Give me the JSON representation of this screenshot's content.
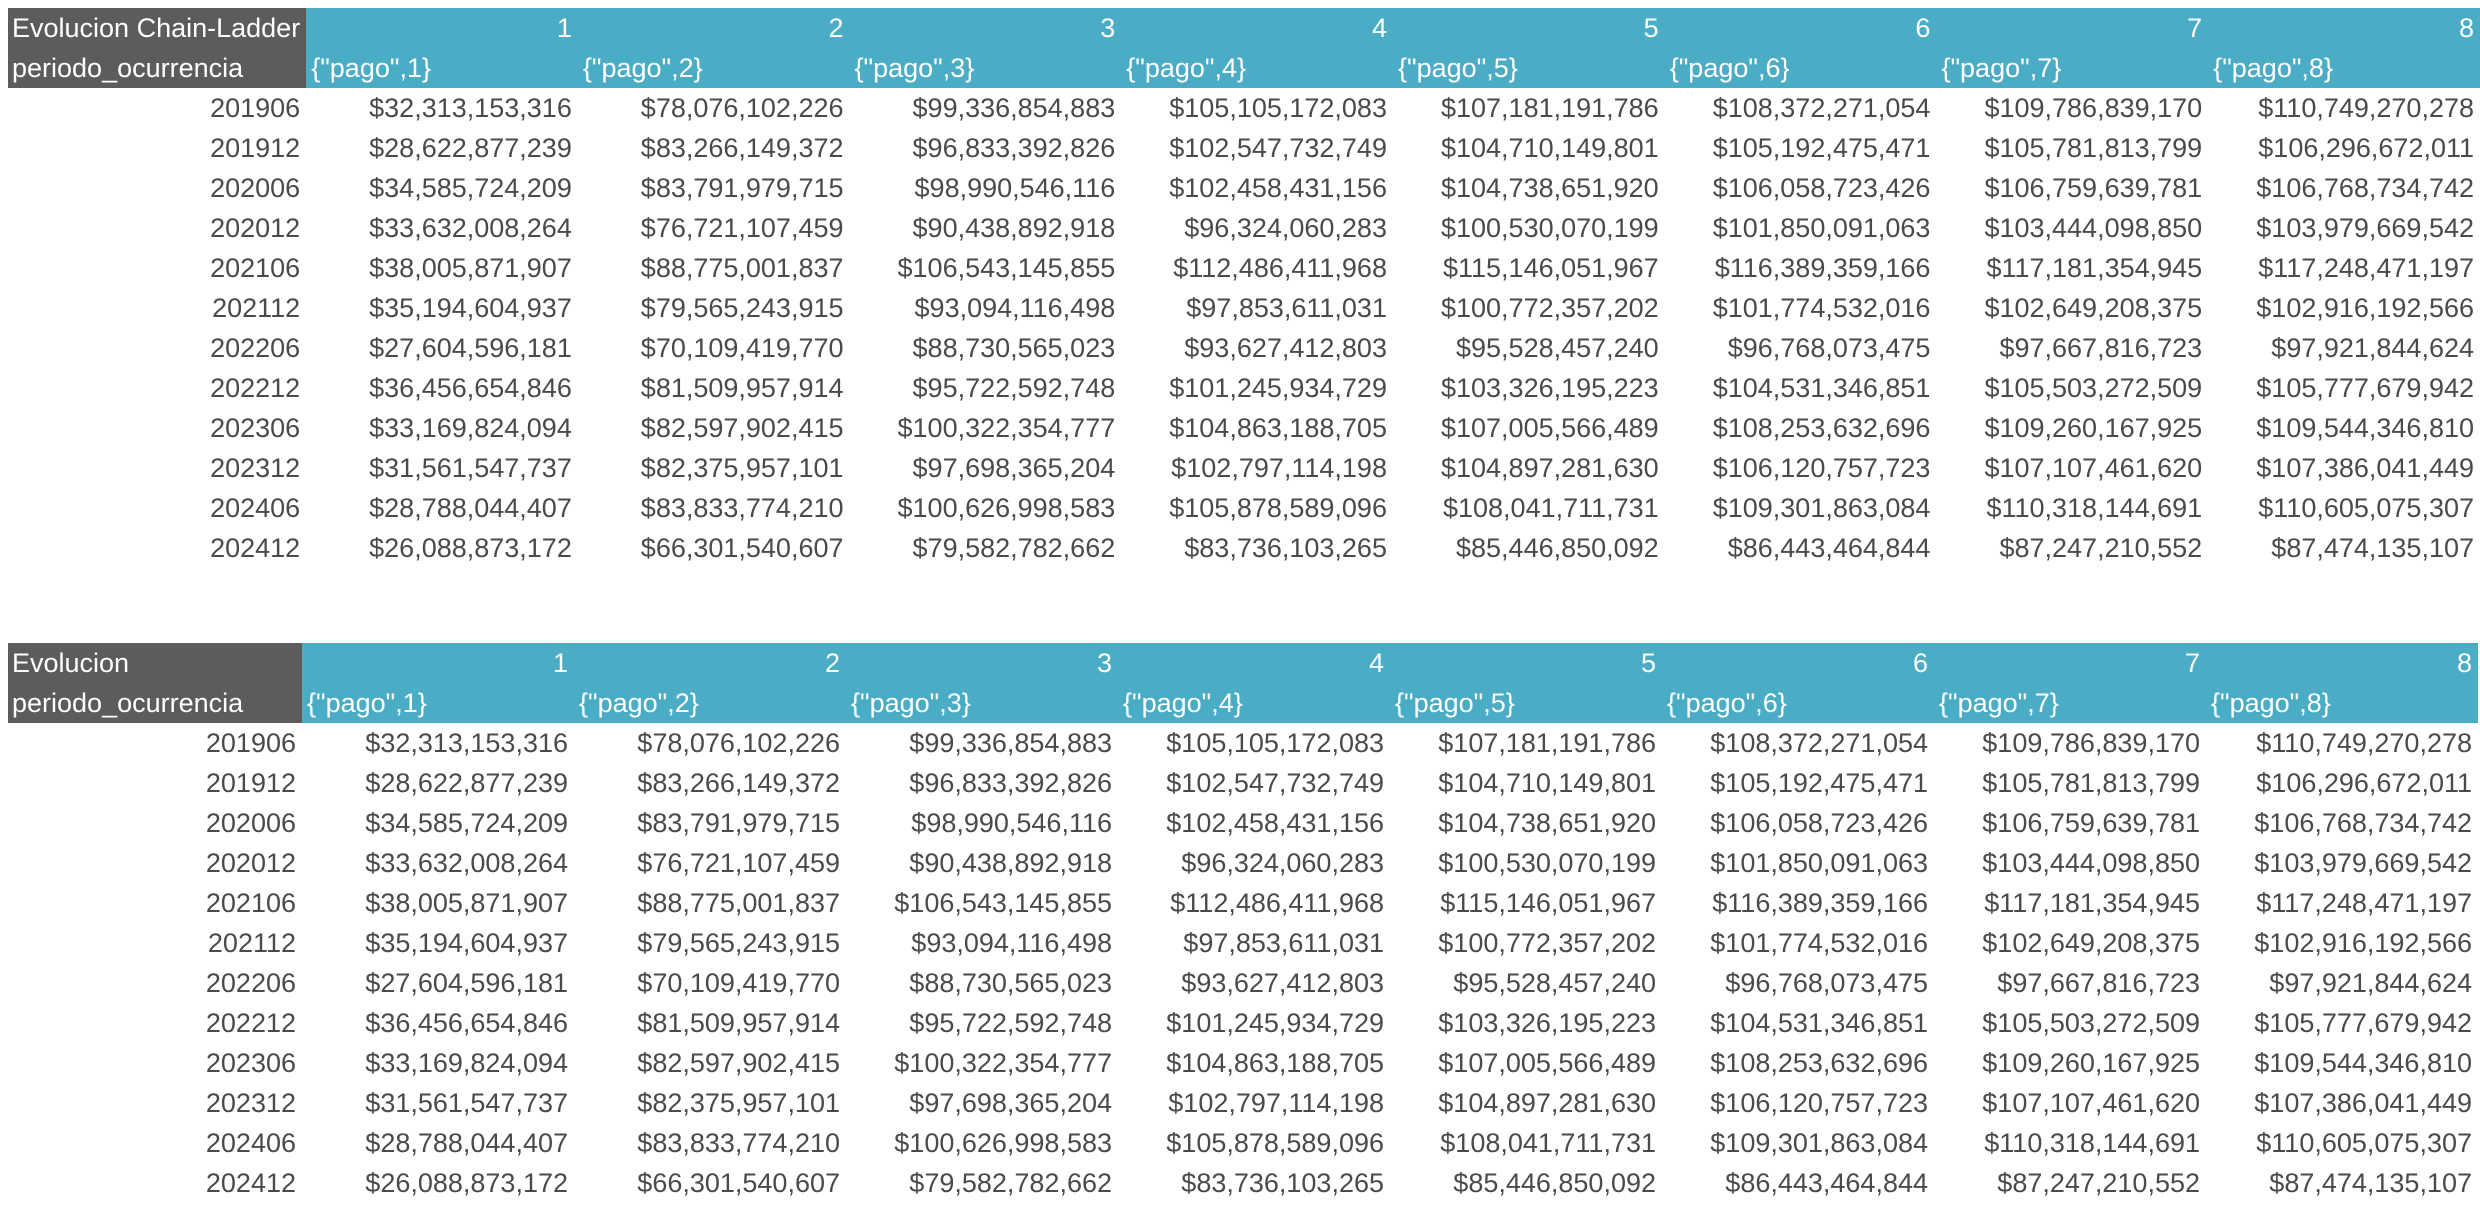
{
  "tables": [
    {
      "corner_title": "Evolucion Chain-Ladder",
      "row_header": "periodo_ocurrencia",
      "column_numbers": [
        "1",
        "2",
        "3",
        "4",
        "5",
        "6",
        "7",
        "8"
      ],
      "column_keys": [
        "{\"pago\",1}",
        "{\"pago\",2}",
        "{\"pago\",3}",
        "{\"pago\",4}",
        "{\"pago\",5}",
        "{\"pago\",6}",
        "{\"pago\",7}",
        "{\"pago\",8}"
      ],
      "rows": [
        {
          "period": "201906",
          "values": [
            "$32,313,153,316",
            "$78,076,102,226",
            "$99,336,854,883",
            "$105,105,172,083",
            "$107,181,191,786",
            "$108,372,271,054",
            "$109,786,839,170",
            "$110,749,270,278"
          ]
        },
        {
          "period": "201912",
          "values": [
            "$28,622,877,239",
            "$83,266,149,372",
            "$96,833,392,826",
            "$102,547,732,749",
            "$104,710,149,801",
            "$105,192,475,471",
            "$105,781,813,799",
            "$106,296,672,011"
          ]
        },
        {
          "period": "202006",
          "values": [
            "$34,585,724,209",
            "$83,791,979,715",
            "$98,990,546,116",
            "$102,458,431,156",
            "$104,738,651,920",
            "$106,058,723,426",
            "$106,759,639,781",
            "$106,768,734,742"
          ]
        },
        {
          "period": "202012",
          "values": [
            "$33,632,008,264",
            "$76,721,107,459",
            "$90,438,892,918",
            "$96,324,060,283",
            "$100,530,070,199",
            "$101,850,091,063",
            "$103,444,098,850",
            "$103,979,669,542"
          ]
        },
        {
          "period": "202106",
          "values": [
            "$38,005,871,907",
            "$88,775,001,837",
            "$106,543,145,855",
            "$112,486,411,968",
            "$115,146,051,967",
            "$116,389,359,166",
            "$117,181,354,945",
            "$117,248,471,197"
          ]
        },
        {
          "period": "202112",
          "values": [
            "$35,194,604,937",
            "$79,565,243,915",
            "$93,094,116,498",
            "$97,853,611,031",
            "$100,772,357,202",
            "$101,774,532,016",
            "$102,649,208,375",
            "$102,916,192,566"
          ]
        },
        {
          "period": "202206",
          "values": [
            "$27,604,596,181",
            "$70,109,419,770",
            "$88,730,565,023",
            "$93,627,412,803",
            "$95,528,457,240",
            "$96,768,073,475",
            "$97,667,816,723",
            "$97,921,844,624"
          ]
        },
        {
          "period": "202212",
          "values": [
            "$36,456,654,846",
            "$81,509,957,914",
            "$95,722,592,748",
            "$101,245,934,729",
            "$103,326,195,223",
            "$104,531,346,851",
            "$105,503,272,509",
            "$105,777,679,942"
          ]
        },
        {
          "period": "202306",
          "values": [
            "$33,169,824,094",
            "$82,597,902,415",
            "$100,322,354,777",
            "$104,863,188,705",
            "$107,005,566,489",
            "$108,253,632,696",
            "$109,260,167,925",
            "$109,544,346,810"
          ]
        },
        {
          "period": "202312",
          "values": [
            "$31,561,547,737",
            "$82,375,957,101",
            "$97,698,365,204",
            "$102,797,114,198",
            "$104,897,281,630",
            "$106,120,757,723",
            "$107,107,461,620",
            "$107,386,041,449"
          ]
        },
        {
          "period": "202406",
          "values": [
            "$28,788,044,407",
            "$83,833,774,210",
            "$100,626,998,583",
            "$105,878,589,096",
            "$108,041,711,731",
            "$109,301,863,084",
            "$110,318,144,691",
            "$110,605,075,307"
          ]
        },
        {
          "period": "202412",
          "values": [
            "$26,088,873,172",
            "$66,301,540,607",
            "$79,582,782,662",
            "$83,736,103,265",
            "$85,446,850,092",
            "$86,443,464,844",
            "$87,247,210,552",
            "$87,474,135,107"
          ]
        }
      ]
    },
    {
      "corner_title": "Evolucion",
      "row_header": "periodo_ocurrencia",
      "column_numbers": [
        "1",
        "2",
        "3",
        "4",
        "5",
        "6",
        "7",
        "8"
      ],
      "column_keys": [
        "{\"pago\",1}",
        "{\"pago\",2}",
        "{\"pago\",3}",
        "{\"pago\",4}",
        "{\"pago\",5}",
        "{\"pago\",6}",
        "{\"pago\",7}",
        "{\"pago\",8}"
      ],
      "rows": [
        {
          "period": "201906",
          "values": [
            "$32,313,153,316",
            "$78,076,102,226",
            "$99,336,854,883",
            "$105,105,172,083",
            "$107,181,191,786",
            "$108,372,271,054",
            "$109,786,839,170",
            "$110,749,270,278"
          ]
        },
        {
          "period": "201912",
          "values": [
            "$28,622,877,239",
            "$83,266,149,372",
            "$96,833,392,826",
            "$102,547,732,749",
            "$104,710,149,801",
            "$105,192,475,471",
            "$105,781,813,799",
            "$106,296,672,011"
          ]
        },
        {
          "period": "202006",
          "values": [
            "$34,585,724,209",
            "$83,791,979,715",
            "$98,990,546,116",
            "$102,458,431,156",
            "$104,738,651,920",
            "$106,058,723,426",
            "$106,759,639,781",
            "$106,768,734,742"
          ]
        },
        {
          "period": "202012",
          "values": [
            "$33,632,008,264",
            "$76,721,107,459",
            "$90,438,892,918",
            "$96,324,060,283",
            "$100,530,070,199",
            "$101,850,091,063",
            "$103,444,098,850",
            "$103,979,669,542"
          ]
        },
        {
          "period": "202106",
          "values": [
            "$38,005,871,907",
            "$88,775,001,837",
            "$106,543,145,855",
            "$112,486,411,968",
            "$115,146,051,967",
            "$116,389,359,166",
            "$117,181,354,945",
            "$117,248,471,197"
          ]
        },
        {
          "period": "202112",
          "values": [
            "$35,194,604,937",
            "$79,565,243,915",
            "$93,094,116,498",
            "$97,853,611,031",
            "$100,772,357,202",
            "$101,774,532,016",
            "$102,649,208,375",
            "$102,916,192,566"
          ]
        },
        {
          "period": "202206",
          "values": [
            "$27,604,596,181",
            "$70,109,419,770",
            "$88,730,565,023",
            "$93,627,412,803",
            "$95,528,457,240",
            "$96,768,073,475",
            "$97,667,816,723",
            "$97,921,844,624"
          ]
        },
        {
          "period": "202212",
          "values": [
            "$36,456,654,846",
            "$81,509,957,914",
            "$95,722,592,748",
            "$101,245,934,729",
            "$103,326,195,223",
            "$104,531,346,851",
            "$105,503,272,509",
            "$105,777,679,942"
          ]
        },
        {
          "period": "202306",
          "values": [
            "$33,169,824,094",
            "$82,597,902,415",
            "$100,322,354,777",
            "$104,863,188,705",
            "$107,005,566,489",
            "$108,253,632,696",
            "$109,260,167,925",
            "$109,544,346,810"
          ]
        },
        {
          "period": "202312",
          "values": [
            "$31,561,547,737",
            "$82,375,957,101",
            "$97,698,365,204",
            "$102,797,114,198",
            "$104,897,281,630",
            "$106,120,757,723",
            "$107,107,461,620",
            "$107,386,041,449"
          ]
        },
        {
          "period": "202406",
          "values": [
            "$28,788,044,407",
            "$83,833,774,210",
            "$100,626,998,583",
            "$105,878,589,096",
            "$108,041,711,731",
            "$109,301,863,084",
            "$110,318,144,691",
            "$110,605,075,307"
          ]
        },
        {
          "period": "202412",
          "values": [
            "$26,088,873,172",
            "$66,301,540,607",
            "$79,582,782,662",
            "$83,736,103,265",
            "$85,446,850,092",
            "$86,443,464,844",
            "$87,247,210,552",
            "$87,474,135,107"
          ]
        }
      ]
    }
  ]
}
